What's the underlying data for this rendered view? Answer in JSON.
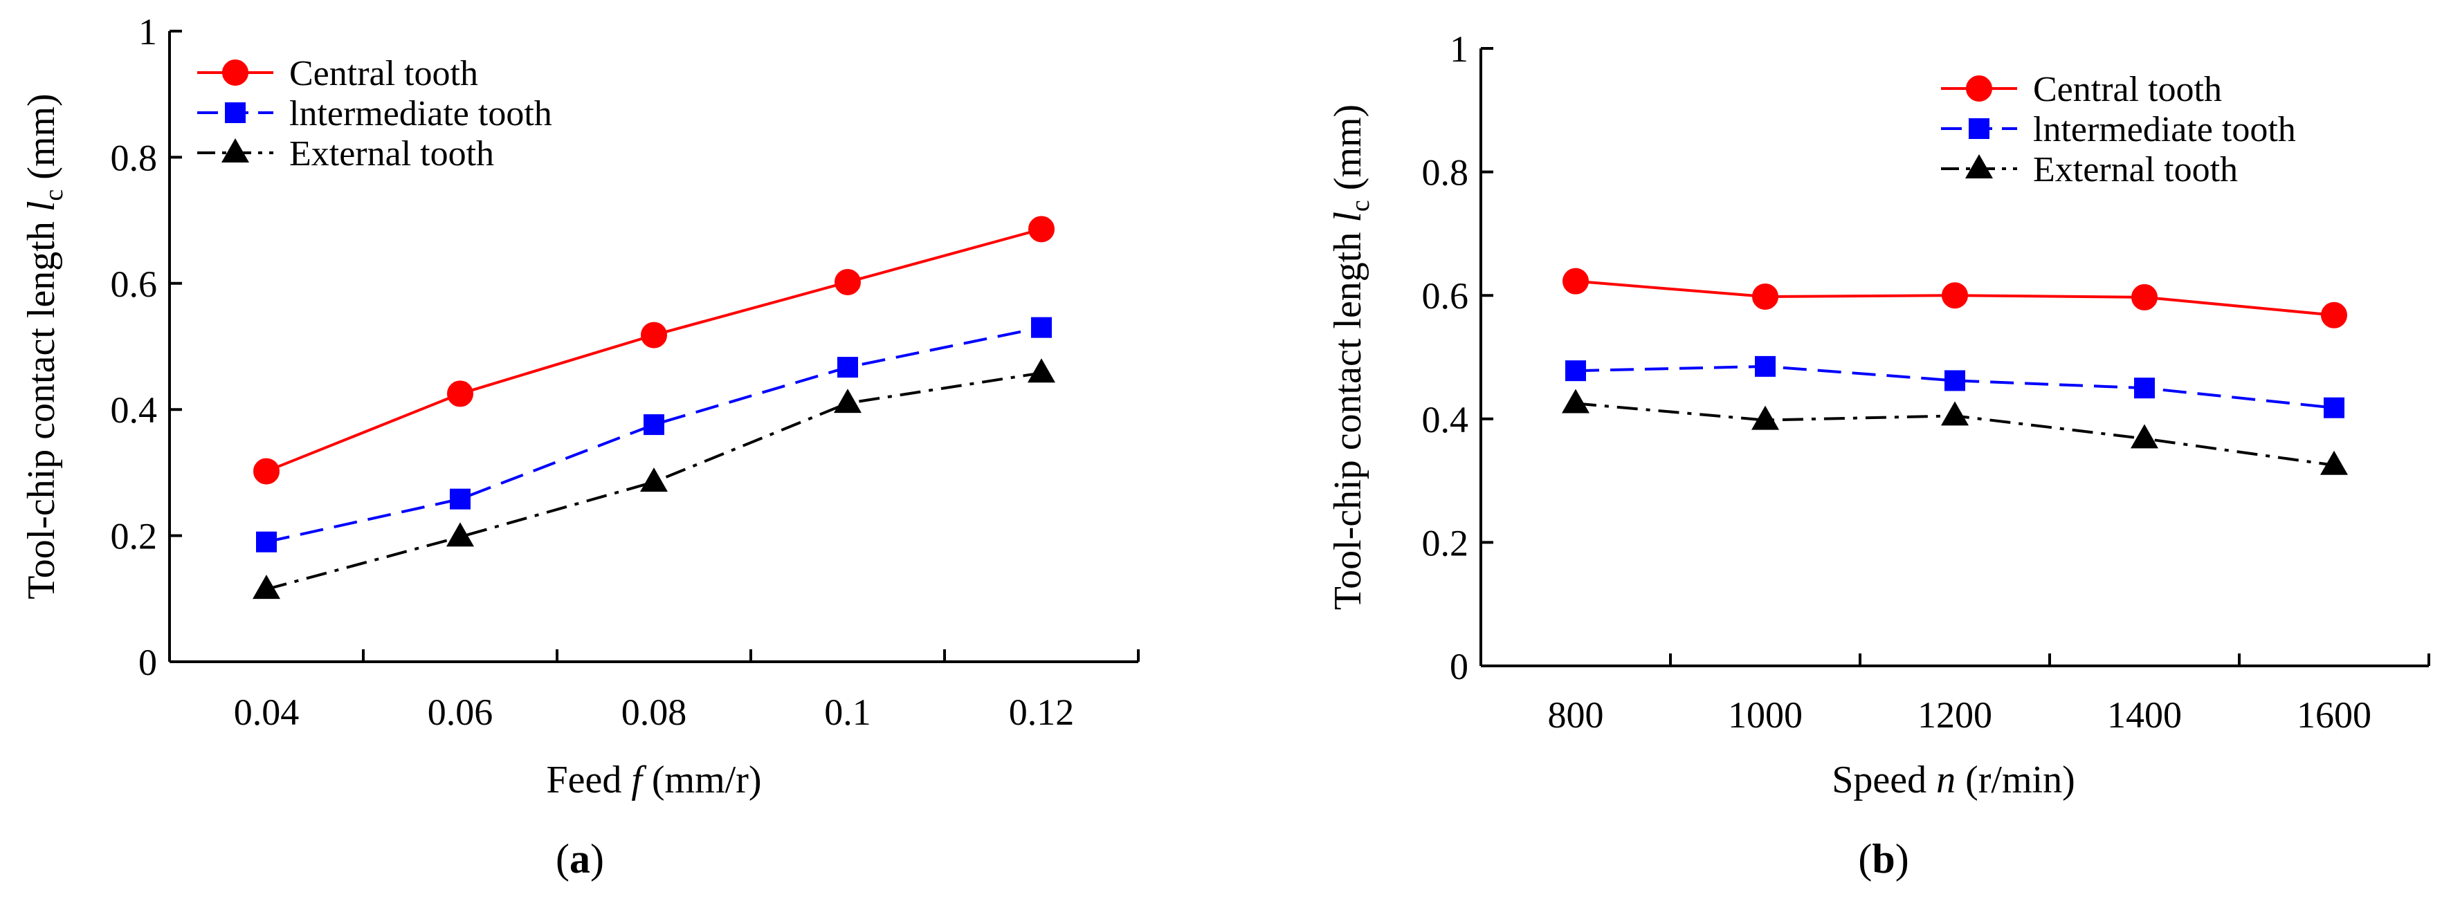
{
  "chart_data": [
    {
      "type": "line",
      "panel_label": "a",
      "xlabel": {
        "pre": "Feed ",
        "var": "f",
        "post": " (mm/r)"
      },
      "ylabel": {
        "pre": "Tool-chip contact length ",
        "var": "l",
        "sub": "c",
        "post": " (mm)"
      },
      "categories": [
        "0.04",
        "0.06",
        "0.08",
        "0.1",
        "0.12"
      ],
      "ylim": [
        0,
        1
      ],
      "yticks": [
        "0",
        "0.2",
        "0.4",
        "0.6",
        "0.8",
        "1"
      ],
      "legend_position": "top-left",
      "series": [
        {
          "name": "Central tooth",
          "color": "#ff0000",
          "marker": "circle",
          "dash": "solid",
          "values": [
            0.302,
            0.425,
            0.518,
            0.602,
            0.686
          ]
        },
        {
          "name": "lntermediate tooth",
          "color": "#0000ff",
          "marker": "square",
          "dash": "dashed",
          "values": [
            0.19,
            0.258,
            0.376,
            0.467,
            0.53
          ]
        },
        {
          "name": "External tooth",
          "color": "#000000",
          "marker": "triangle",
          "dash": "dash-dot",
          "values": [
            0.115,
            0.198,
            0.285,
            0.41,
            0.458
          ]
        }
      ]
    },
    {
      "type": "line",
      "panel_label": "b",
      "xlabel": {
        "pre": "Speed ",
        "var": "n",
        "post": " (r/min)"
      },
      "ylabel": {
        "pre": "Tool-chip contact length ",
        "var": "l",
        "sub": "c",
        "post": " (mm)"
      },
      "categories": [
        "800",
        "1000",
        "1200",
        "1400",
        "1600"
      ],
      "ylim": [
        0,
        1
      ],
      "yticks": [
        "0",
        "0.2",
        "0.4",
        "0.6",
        "0.8",
        "1"
      ],
      "legend_position": "top-right",
      "series": [
        {
          "name": "Central tooth",
          "color": "#ff0000",
          "marker": "circle",
          "dash": "solid",
          "values": [
            0.623,
            0.598,
            0.6,
            0.597,
            0.568
          ]
        },
        {
          "name": "lntermediate tooth",
          "color": "#0000ff",
          "marker": "square",
          "dash": "dashed",
          "values": [
            0.478,
            0.485,
            0.462,
            0.45,
            0.418
          ]
        },
        {
          "name": "External tooth",
          "color": "#000000",
          "marker": "triangle",
          "dash": "dash-dot",
          "values": [
            0.425,
            0.398,
            0.405,
            0.368,
            0.325
          ]
        }
      ]
    }
  ]
}
